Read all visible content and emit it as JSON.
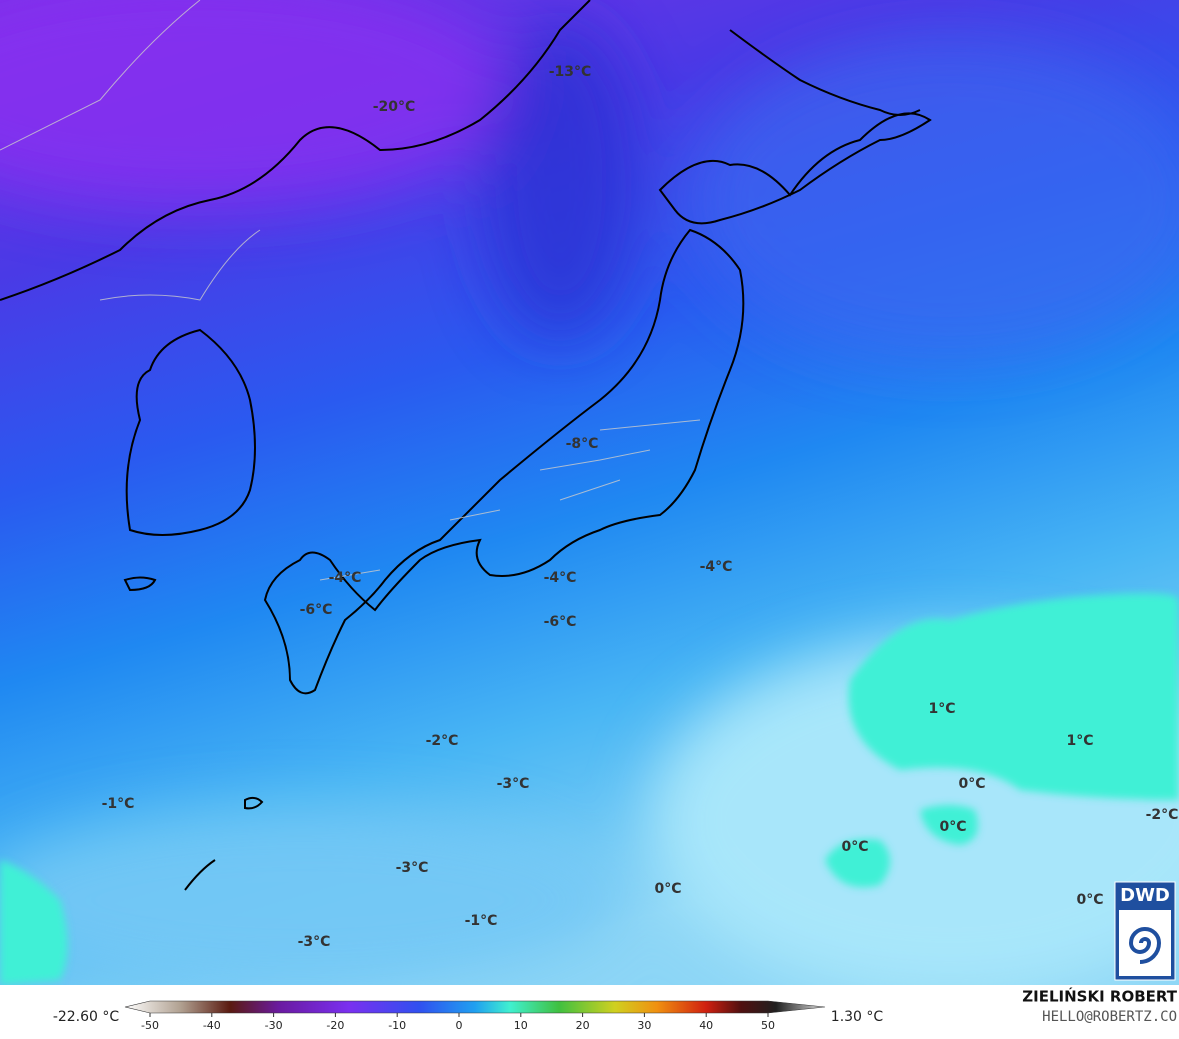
{
  "map": {
    "labels": [
      "-20°C",
      "-13°C",
      "-8°C",
      "-4°C",
      "-6°C",
      "-4°C",
      "-6°C",
      "-4°C",
      "1°C",
      "1°C",
      "-2°C",
      "-3°C",
      "0°C",
      "-1°C",
      "0°C",
      "0°C",
      "-2°C",
      "-3°C",
      "0°C",
      "0°C",
      "-1°C",
      "-3°C"
    ]
  },
  "colorbar": {
    "min_label": "-22.60 °C",
    "max_label": "1.30 °C",
    "ticks": [
      -50,
      -40,
      -30,
      -20,
      -10,
      0,
      10,
      20,
      30,
      40,
      50
    ]
  },
  "credit": {
    "author": "ZIELIŃSKI ROBERT",
    "contact": "HELLO@ROBERTZ.CO"
  },
  "logo": "DWD"
}
